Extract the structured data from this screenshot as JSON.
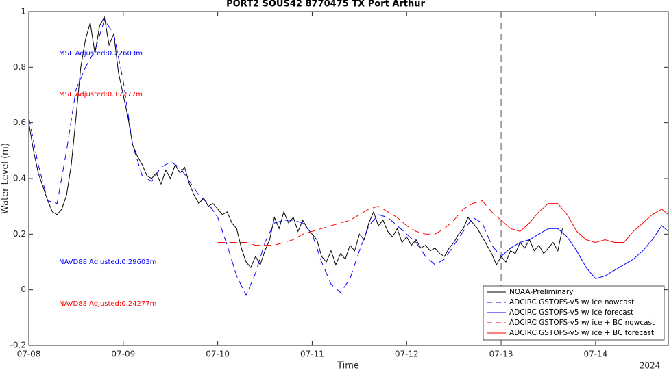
{
  "chart_data": {
    "type": "line",
    "title": "PORT2 SOUS42 8770475 TX Port Arthur",
    "x_label": "Time",
    "y_label": "Water Level (m)",
    "year_label": "2024",
    "xlim": [
      0,
      6.77
    ],
    "xticks": [
      {
        "value": 0,
        "label": "07-08"
      },
      {
        "value": 1,
        "label": "07-09"
      },
      {
        "value": 2,
        "label": "07-10"
      },
      {
        "value": 3,
        "label": "07-11"
      },
      {
        "value": 4,
        "label": "07-12"
      },
      {
        "value": 5,
        "label": "07-13"
      },
      {
        "value": 6,
        "label": "07-14"
      }
    ],
    "ylim": [
      -0.2,
      1
    ],
    "yticks": [
      -0.2,
      0,
      0.2,
      0.4,
      0.6,
      0.8,
      1
    ],
    "grid": false,
    "vline_x": 5,
    "legend": "southeast",
    "annotations": [
      {
        "text": "MSL Adjusted:0.22603m",
        "color": "#0000ff"
      },
      {
        "text": "MSL Adjusted:0.17277m",
        "color": "#ff0000"
      },
      {
        "text": "NAVD88 Adjusted:0.29603m",
        "color": "#0000ff"
      },
      {
        "text": "NAVD88 Adjusted:0.24277m",
        "color": "#ff0000"
      }
    ],
    "series": [
      {
        "name": "NOAA-Preliminary",
        "color": "#000000",
        "style": "solid",
        "x": [
          0,
          0.05,
          0.1,
          0.15,
          0.2,
          0.25,
          0.3,
          0.35,
          0.4,
          0.45,
          0.5,
          0.55,
          0.6,
          0.65,
          0.7,
          0.75,
          0.8,
          0.85,
          0.9,
          0.95,
          1,
          1.05,
          1.1,
          1.15,
          1.2,
          1.25,
          1.3,
          1.35,
          1.4,
          1.45,
          1.5,
          1.55,
          1.6,
          1.65,
          1.7,
          1.75,
          1.8,
          1.85,
          1.9,
          1.95,
          2,
          2.05,
          2.1,
          2.15,
          2.2,
          2.25,
          2.3,
          2.35,
          2.4,
          2.45,
          2.5,
          2.55,
          2.6,
          2.65,
          2.7,
          2.75,
          2.8,
          2.85,
          2.9,
          2.95,
          3,
          3.05,
          3.1,
          3.15,
          3.2,
          3.25,
          3.3,
          3.35,
          3.4,
          3.45,
          3.5,
          3.55,
          3.6,
          3.65,
          3.7,
          3.75,
          3.8,
          3.85,
          3.9,
          3.95,
          4,
          4.05,
          4.1,
          4.15,
          4.2,
          4.25,
          4.3,
          4.35,
          4.4,
          4.45,
          4.5,
          4.55,
          4.6,
          4.65,
          4.7,
          4.75,
          4.8,
          4.85,
          4.9,
          4.95,
          5,
          5.05,
          5.1,
          5.15,
          5.2,
          5.25,
          5.3,
          5.35,
          5.4,
          5.45,
          5.5,
          5.55,
          5.6,
          5.65
        ],
        "values": [
          0.6,
          0.5,
          0.42,
          0.37,
          0.32,
          0.28,
          0.27,
          0.29,
          0.34,
          0.45,
          0.62,
          0.8,
          0.9,
          0.96,
          0.85,
          0.95,
          0.98,
          0.88,
          0.92,
          0.78,
          0.7,
          0.62,
          0.52,
          0.48,
          0.45,
          0.41,
          0.4,
          0.42,
          0.38,
          0.43,
          0.4,
          0.45,
          0.42,
          0.44,
          0.38,
          0.34,
          0.31,
          0.33,
          0.3,
          0.31,
          0.29,
          0.27,
          0.28,
          0.24,
          0.22,
          0.15,
          0.1,
          0.08,
          0.12,
          0.09,
          0.14,
          0.18,
          0.26,
          0.22,
          0.28,
          0.24,
          0.26,
          0.21,
          0.25,
          0.22,
          0.2,
          0.18,
          0.12,
          0.1,
          0.14,
          0.09,
          0.13,
          0.11,
          0.16,
          0.14,
          0.2,
          0.18,
          0.24,
          0.28,
          0.23,
          0.25,
          0.21,
          0.19,
          0.22,
          0.17,
          0.19,
          0.16,
          0.18,
          0.15,
          0.16,
          0.14,
          0.15,
          0.13,
          0.12,
          0.15,
          0.17,
          0.2,
          0.22,
          0.26,
          0.24,
          0.22,
          0.19,
          0.16,
          0.13,
          0.09,
          0.12,
          0.1,
          0.14,
          0.13,
          0.17,
          0.15,
          0.18,
          0.14,
          0.16,
          0.13,
          0.15,
          0.17,
          0.14,
          0.22
        ]
      },
      {
        "name": "ADCIRC GSTOFS-v5 w/ ice nowcast",
        "color": "#0000ff",
        "style": "dashed",
        "x": [
          0,
          0.1,
          0.2,
          0.3,
          0.4,
          0.5,
          0.6,
          0.7,
          0.8,
          0.9,
          1,
          1.1,
          1.2,
          1.3,
          1.4,
          1.5,
          1.6,
          1.7,
          1.8,
          1.9,
          2,
          2.1,
          2.2,
          2.3,
          2.4,
          2.5,
          2.6,
          2.7,
          2.8,
          2.9,
          3,
          3.1,
          3.2,
          3.3,
          3.4,
          3.5,
          3.6,
          3.7,
          3.8,
          3.9,
          4,
          4.1,
          4.2,
          4.3,
          4.4,
          4.5,
          4.6,
          4.7,
          4.8,
          4.9,
          5
        ],
        "values": [
          0.62,
          0.45,
          0.32,
          0.31,
          0.5,
          0.72,
          0.8,
          0.86,
          0.97,
          0.92,
          0.75,
          0.52,
          0.41,
          0.39,
          0.44,
          0.46,
          0.44,
          0.39,
          0.34,
          0.31,
          0.26,
          0.16,
          0.05,
          -0.02,
          0.06,
          0.17,
          0.24,
          0.25,
          0.25,
          0.24,
          0.2,
          0.1,
          0.02,
          -0.01,
          0.04,
          0.14,
          0.23,
          0.27,
          0.26,
          0.23,
          0.2,
          0.17,
          0.12,
          0.09,
          0.11,
          0.16,
          0.21,
          0.26,
          0.24,
          0.16,
          0.12
        ]
      },
      {
        "name": "ADCIRC GSTOFS-v5 w/ ice forecast",
        "color": "#0000ff",
        "style": "solid",
        "x": [
          5,
          5.1,
          5.2,
          5.3,
          5.4,
          5.5,
          5.6,
          5.7,
          5.8,
          5.9,
          6,
          6.1,
          6.2,
          6.3,
          6.4,
          6.5,
          6.6,
          6.7,
          6.77
        ],
        "values": [
          0.12,
          0.15,
          0.17,
          0.18,
          0.2,
          0.22,
          0.22,
          0.19,
          0.14,
          0.08,
          0.04,
          0.05,
          0.07,
          0.09,
          0.11,
          0.14,
          0.18,
          0.23,
          0.21
        ]
      },
      {
        "name": "ADCIRC GSTOFS-v5 w/ ice + BC nowcast",
        "color": "#ff0000",
        "style": "dashed",
        "x": [
          2,
          2.1,
          2.2,
          2.3,
          2.4,
          2.5,
          2.6,
          2.7,
          2.8,
          2.9,
          3,
          3.1,
          3.2,
          3.3,
          3.4,
          3.5,
          3.6,
          3.7,
          3.8,
          3.9,
          4,
          4.1,
          4.2,
          4.3,
          4.4,
          4.5,
          4.6,
          4.7,
          4.8,
          4.9,
          5
        ],
        "values": [
          0.17,
          0.17,
          0.17,
          0.17,
          0.16,
          0.16,
          0.16,
          0.17,
          0.18,
          0.2,
          0.21,
          0.22,
          0.23,
          0.24,
          0.25,
          0.27,
          0.29,
          0.3,
          0.28,
          0.26,
          0.23,
          0.21,
          0.2,
          0.2,
          0.22,
          0.25,
          0.29,
          0.31,
          0.32,
          0.28,
          0.25
        ]
      },
      {
        "name": "ADCIRC GSTOFS-v5 w/ ice + BC forecast",
        "color": "#ff0000",
        "style": "solid",
        "x": [
          5,
          5.1,
          5.2,
          5.3,
          5.4,
          5.5,
          5.6,
          5.7,
          5.8,
          5.9,
          6,
          6.1,
          6.2,
          6.3,
          6.4,
          6.5,
          6.6,
          6.7,
          6.77
        ],
        "values": [
          0.25,
          0.22,
          0.21,
          0.24,
          0.28,
          0.31,
          0.31,
          0.27,
          0.21,
          0.18,
          0.17,
          0.18,
          0.17,
          0.17,
          0.21,
          0.24,
          0.27,
          0.29,
          0.27
        ]
      }
    ]
  }
}
